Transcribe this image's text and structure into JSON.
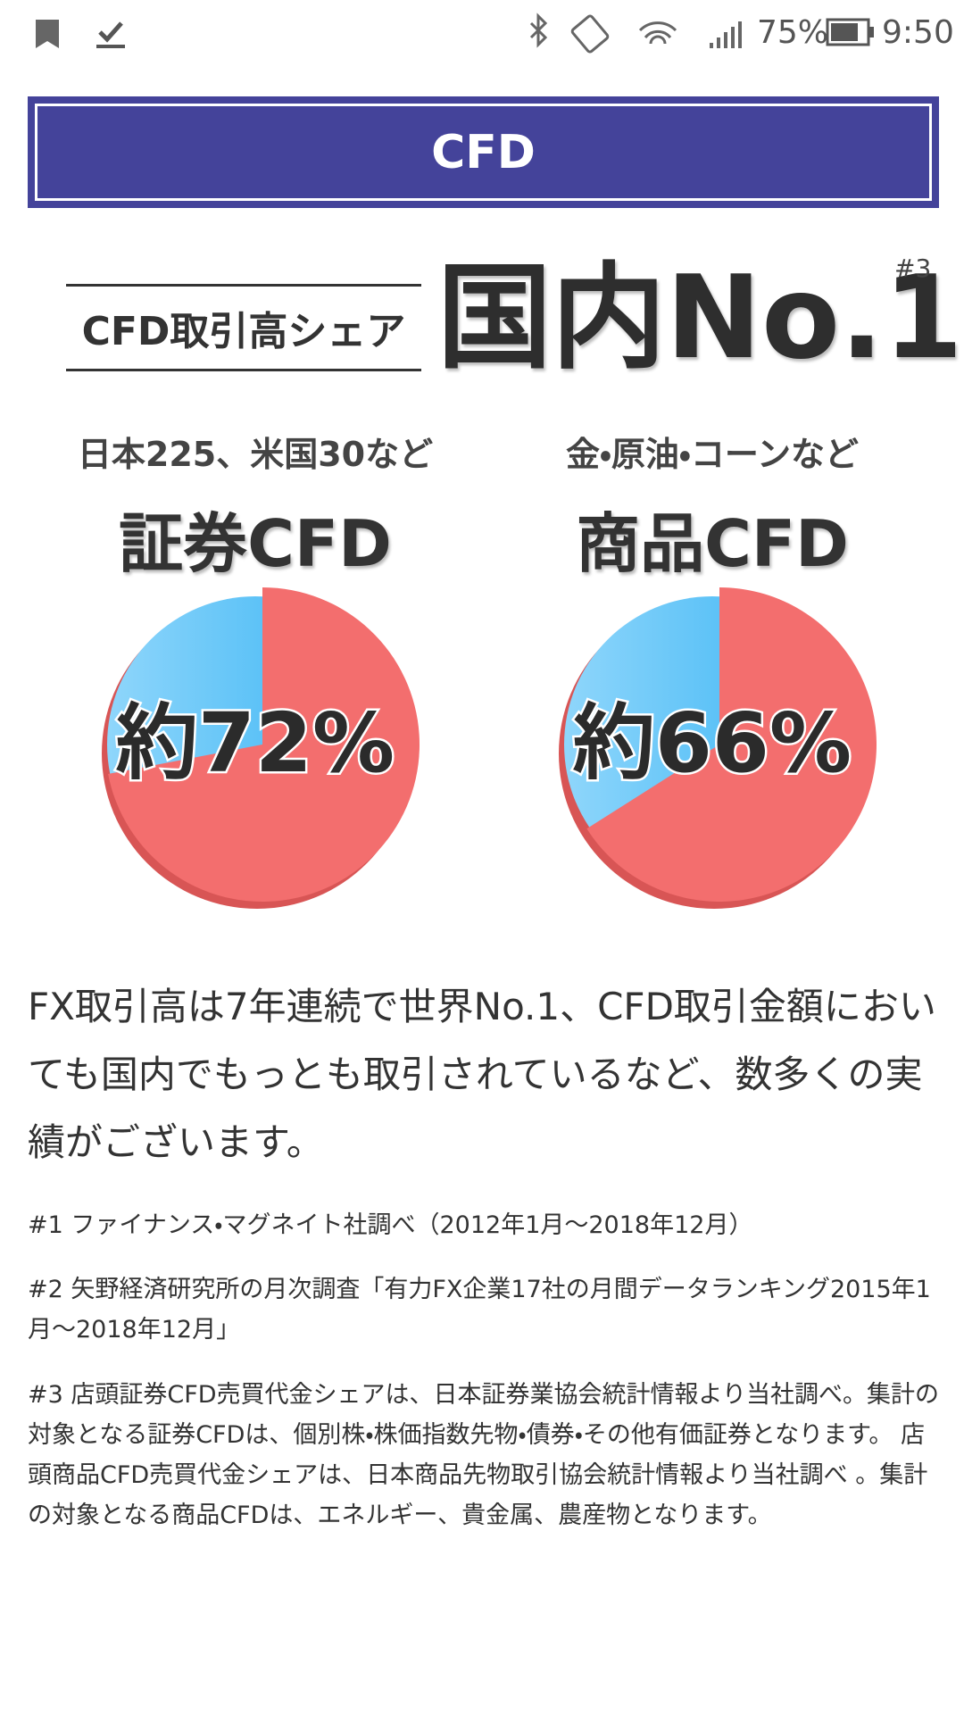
{
  "status_bar": {
    "battery": "75%",
    "time": "9:50"
  },
  "header": {
    "title": "CFD"
  },
  "hero": {
    "label": "CFD取引高シェア",
    "headline": "国内No.1",
    "note_ref": "#3"
  },
  "charts": [
    {
      "type": "pie",
      "subtitle": "日本225、米国30など",
      "title": "証券CFD",
      "value": 72,
      "value_label": "約72%",
      "color": "#f36e6e"
    },
    {
      "type": "pie",
      "subtitle": "金・原油・コーンなど",
      "title": "商品CFD",
      "value": 66,
      "value_label": "約66%",
      "color": "#f36e6e"
    }
  ],
  "body": {
    "text": "FX取引高は7年連続で世界No.1、CFD取引金額においても国内でもっとも取引されているなど、数多くの実績がございます。"
  },
  "notes": [
    "#1 ファイナンス・マグネイト社調べ（2012年1月～2018年12月）",
    "#2 矢野経済研究所の月次調査「有力FX企業17社の月間データランキング2015年1月～2018年12月」",
    "#3 店頭証券CFD売買代金シェアは、日本証券業協会統計情報より当社調べ。集計の対象となる証券CFDは、個別株・株価指数先物・債券・その他有価証券となります。 店頭商品CFD売買代金シェアは、日本商品先物取引協会統計情報より当社調べ 。集計の対象となる商品CFDは、エネルギー、貴金属、農産物となります。"
  ]
}
